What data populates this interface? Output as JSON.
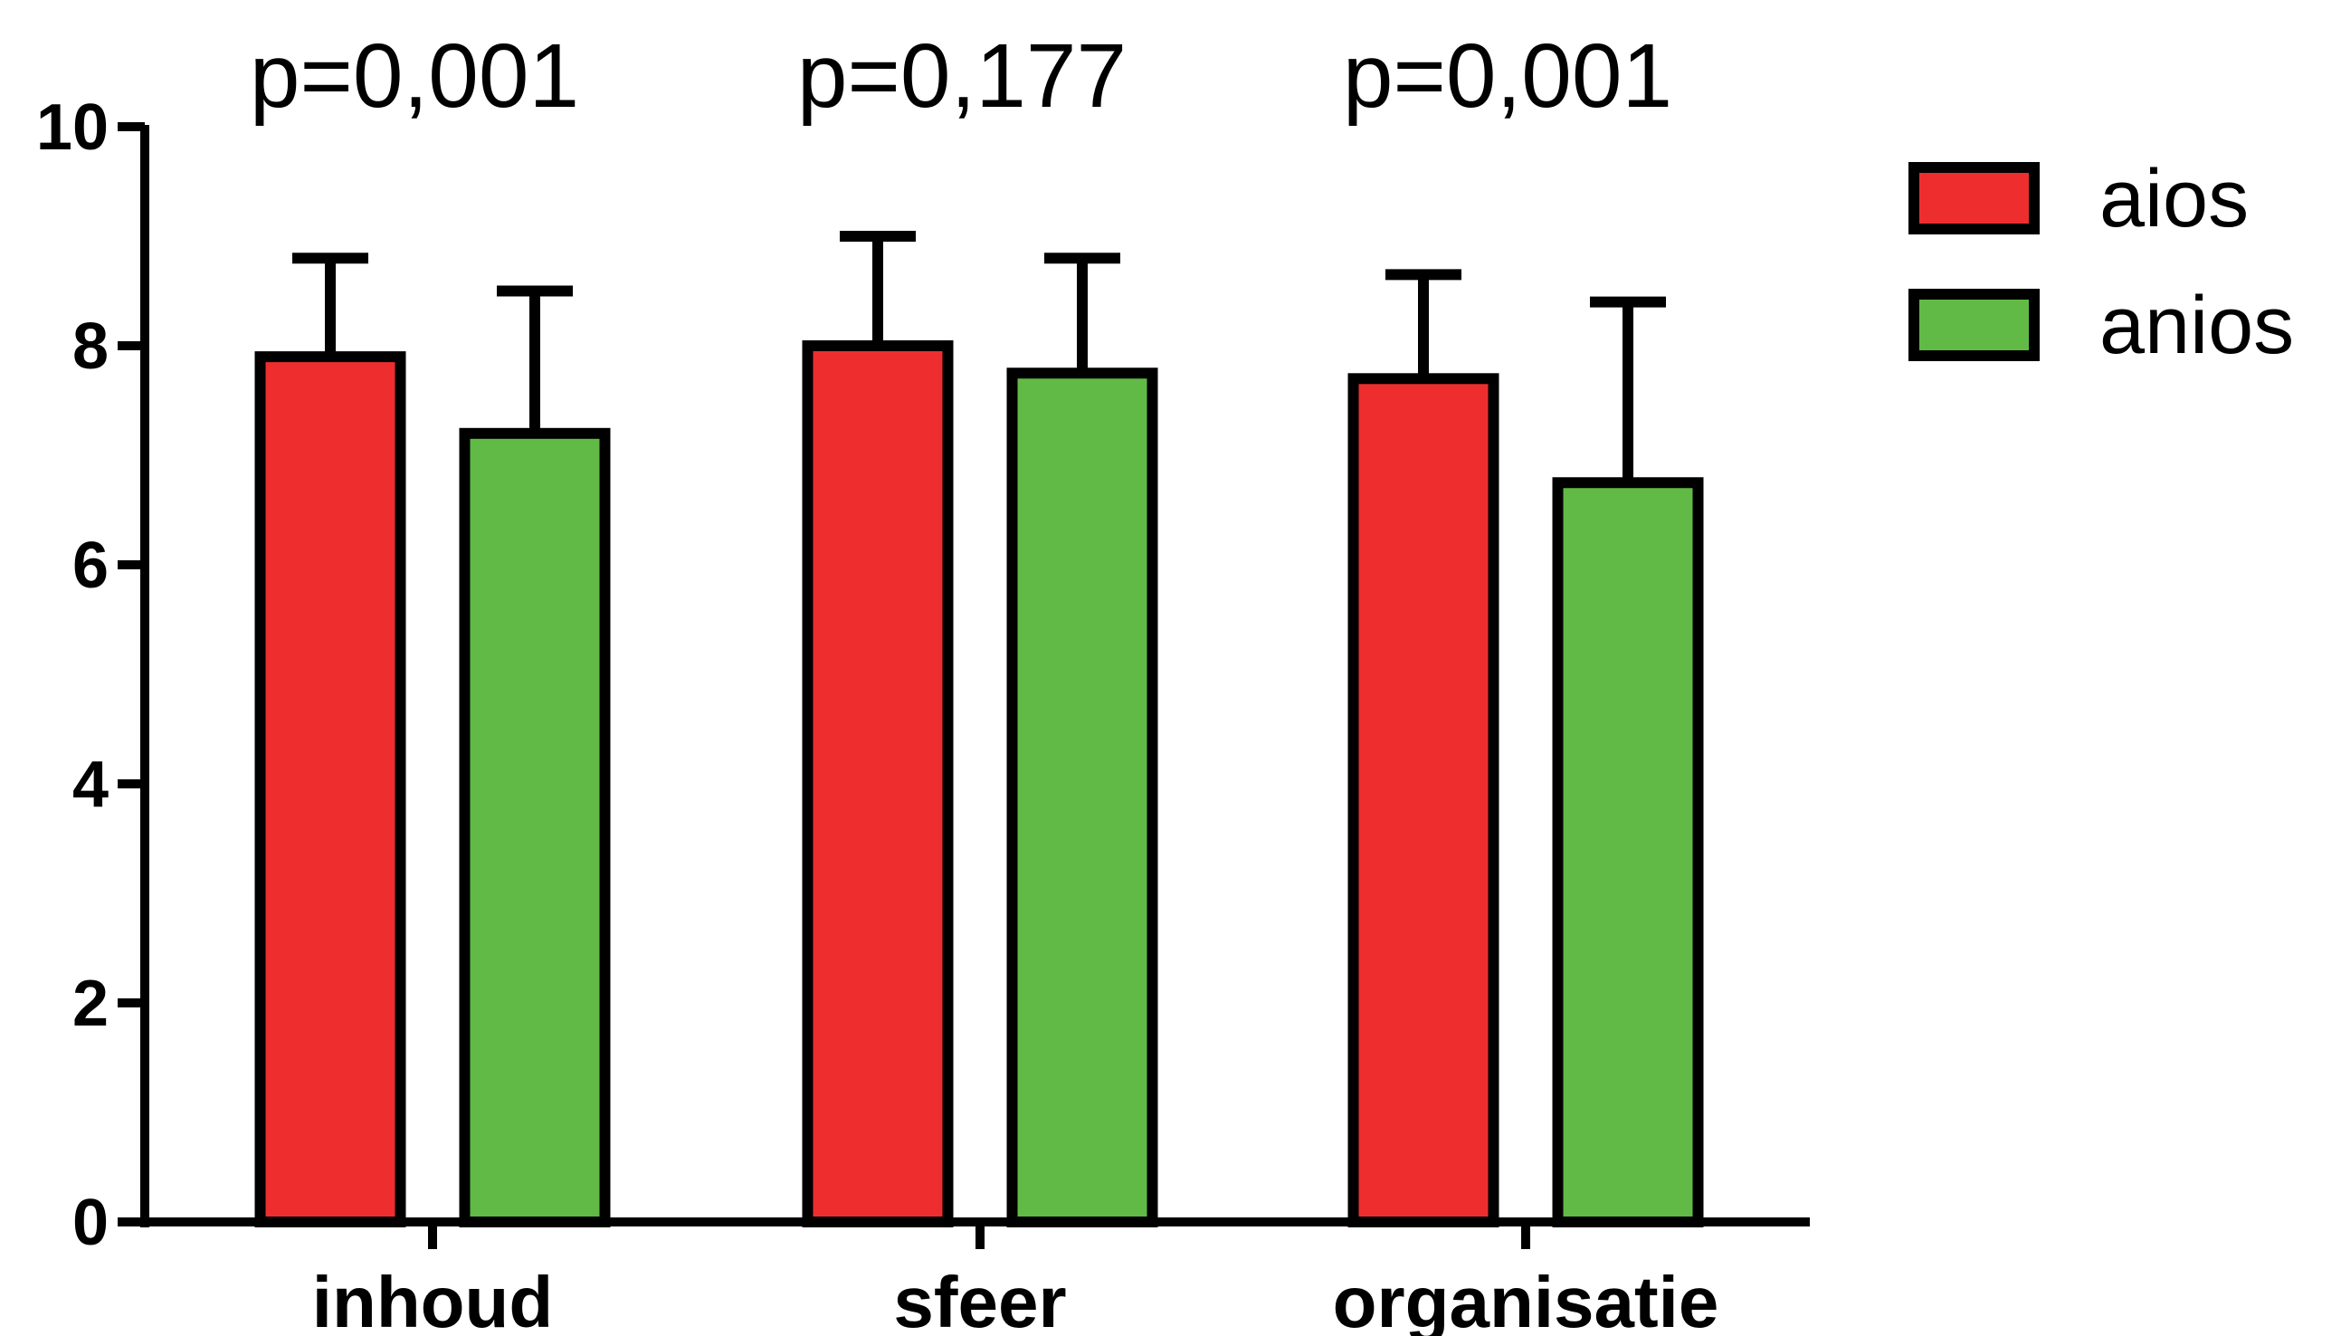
{
  "chart_data": {
    "type": "bar",
    "categories": [
      "inhoud",
      "sfeer",
      "organisatie"
    ],
    "series": [
      {
        "name": "aios",
        "color": "#ee2e2e",
        "values": [
          7.9,
          8.0,
          7.7
        ],
        "error_upper": [
          8.8,
          9.0,
          8.65
        ]
      },
      {
        "name": "anios",
        "color": "#62ba46",
        "values": [
          7.2,
          7.75,
          6.75
        ],
        "error_upper": [
          8.5,
          8.8,
          8.4
        ]
      }
    ],
    "annotations": [
      "p=0,001",
      "p=0,177",
      "p=0,001"
    ],
    "ylim": [
      0,
      10
    ],
    "yticks": [
      0,
      2,
      4,
      6,
      8,
      10
    ],
    "ytick_labels": [
      "0",
      "2",
      "4",
      "6",
      "8",
      "10"
    ],
    "xlabel": "",
    "ylabel": "",
    "grid": false,
    "legend_position": "top-right",
    "error_bars": "upper only"
  }
}
